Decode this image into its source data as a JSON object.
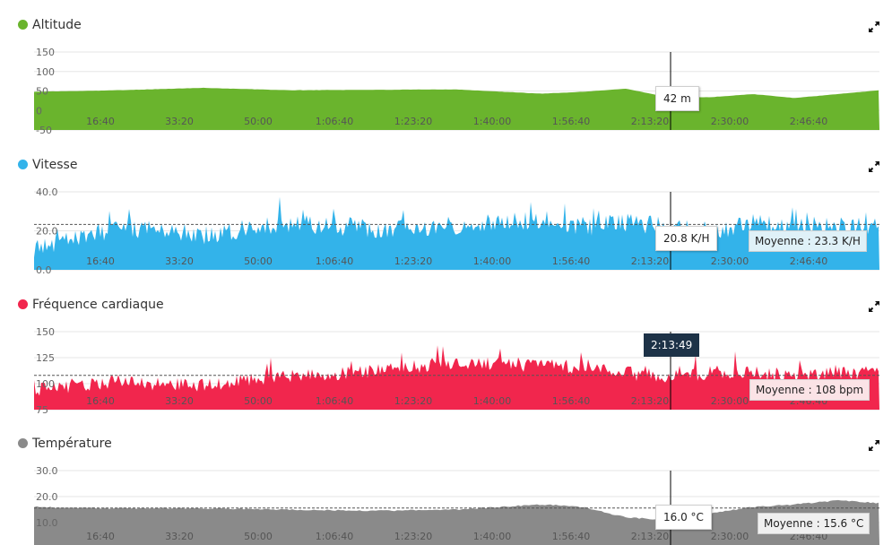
{
  "x_ticks": [
    "16:40",
    "33:20",
    "50:00",
    "1:06:40",
    "1:23:20",
    "1:40:00",
    "1:56:40",
    "2:13:20",
    "2:30:00",
    "2:46:40"
  ],
  "cursor": {
    "time": "2:13:49"
  },
  "panels": [
    {
      "key": "altitude",
      "title": "Altitude",
      "color": "#6ab42d",
      "expand_icon": "expand-arrows-icon",
      "tooltip": "42 m",
      "average_label": ""
    },
    {
      "key": "speed",
      "title": "Vitesse",
      "color": "#33b3ea",
      "expand_icon": "expand-arrows-icon",
      "tooltip": "20.8 K/H",
      "average_label": "Moyenne : 23.3 K/H"
    },
    {
      "key": "heart",
      "title": "Fréquence cardiaque",
      "color": "#f1264d",
      "expand_icon": "expand-arrows-icon",
      "tooltip": "",
      "average_label": "Moyenne : 108 bpm"
    },
    {
      "key": "temperature",
      "title": "Température",
      "color": "#8a8a8a",
      "expand_icon": "expand-arrows-icon",
      "tooltip": "16.0 °C",
      "average_label": "Moyenne : 15.6 °C"
    }
  ],
  "chart_data": [
    {
      "type": "area",
      "title": "Altitude",
      "y_ticks": [
        "150",
        "100",
        "50",
        "0",
        "-50"
      ],
      "ylim": [
        -50,
        150
      ],
      "x_ticks": [
        "16:40",
        "33:20",
        "50:00",
        "1:06:40",
        "1:23:20",
        "1:40:00",
        "1:56:40",
        "2:13:20",
        "2:30:00",
        "2:46:40"
      ],
      "series": [
        {
          "x": [
            0,
            10,
            20,
            30,
            40,
            50,
            60,
            65,
            70,
            75,
            80,
            85,
            90,
            95,
            100
          ],
          "values": [
            48,
            52,
            58,
            52,
            53,
            54,
            43,
            48,
            56,
            34,
            34,
            42,
            32,
            42,
            52
          ]
        }
      ],
      "cursor_value": "42 m"
    },
    {
      "type": "area",
      "title": "Vitesse",
      "y_ticks": [
        "40.0",
        "20.0",
        "0.0"
      ],
      "ylim": [
        0,
        40
      ],
      "average": 23.3,
      "x_ticks": [
        "16:40",
        "33:20",
        "50:00",
        "1:06:40",
        "1:23:20",
        "1:40:00",
        "1:56:40",
        "2:13:20",
        "2:30:00",
        "2:46:40"
      ],
      "series": [
        {
          "x": [
            0,
            10,
            20,
            30,
            40,
            50,
            60,
            65,
            70,
            75,
            80,
            85,
            90,
            95,
            100
          ],
          "values": [
            10,
            22,
            18,
            24,
            21,
            23,
            26,
            22,
            24,
            22,
            20,
            24,
            22,
            23,
            22
          ]
        }
      ],
      "cursor_value": "20.8 K/H"
    },
    {
      "type": "area",
      "title": "Fréquence cardiaque",
      "y_ticks": [
        "150",
        "125",
        "100",
        "75"
      ],
      "ylim": [
        75,
        150
      ],
      "average": 108,
      "x_ticks": [
        "16:40",
        "33:20",
        "50:00",
        "1:06:40",
        "1:23:20",
        "1:40:00",
        "1:56:40",
        "2:13:20",
        "2:30:00",
        "2:46:40"
      ],
      "series": [
        {
          "x": [
            0,
            10,
            20,
            30,
            40,
            50,
            60,
            65,
            70,
            75,
            80,
            85,
            90,
            95,
            100
          ],
          "values": [
            95,
            102,
            98,
            108,
            112,
            120,
            118,
            115,
            110,
            108,
            110,
            110,
            108,
            110,
            112
          ]
        }
      ]
    },
    {
      "type": "area",
      "title": "Température",
      "y_ticks": [
        "30.0",
        "20.0",
        "10.0",
        "0.0"
      ],
      "ylim": [
        0,
        30
      ],
      "average": 15.6,
      "x_ticks": [
        "16:40",
        "33:20",
        "50:00",
        "1:06:40",
        "1:23:20",
        "1:40:00",
        "1:56:40",
        "2:13:20",
        "2:30:00",
        "2:46:40"
      ],
      "series": [
        {
          "x": [
            0,
            10,
            20,
            30,
            40,
            50,
            60,
            65,
            70,
            75,
            80,
            85,
            90,
            95,
            100
          ],
          "values": [
            16,
            15.5,
            15.5,
            15,
            14.5,
            15,
            17,
            16,
            12,
            11,
            13.5,
            16,
            17,
            18.5,
            17.5
          ]
        }
      ],
      "cursor_value": "16.0 °C"
    }
  ]
}
